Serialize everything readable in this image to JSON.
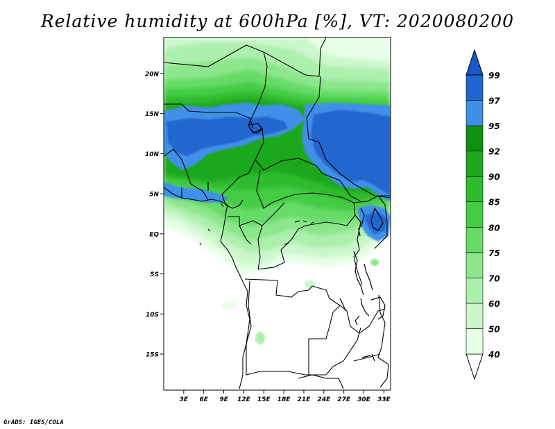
{
  "title": "Relative humidity at 600hPa [%], VT: 2020080200",
  "credit": "GrADS: IGES/COLA",
  "map": {
    "lat_range": [
      -19.5,
      24.5
    ],
    "lon_range": [
      0,
      34
    ],
    "lat_labels": [
      {
        "lat": 20,
        "label": "20N"
      },
      {
        "lat": 15,
        "label": "15N"
      },
      {
        "lat": 10,
        "label": "10N"
      },
      {
        "lat": 5,
        "label": "5N"
      },
      {
        "lat": 0,
        "label": "EQ"
      },
      {
        "lat": -5,
        "label": "5S"
      },
      {
        "lat": -10,
        "label": "10S"
      },
      {
        "lat": -15,
        "label": "15S"
      }
    ],
    "lon_labels": [
      {
        "lon": 3,
        "label": "3E"
      },
      {
        "lon": 6,
        "label": "6E"
      },
      {
        "lon": 9,
        "label": "9E"
      },
      {
        "lon": 12,
        "label": "12E"
      },
      {
        "lon": 15,
        "label": "15E"
      },
      {
        "lon": 18,
        "label": "18E"
      },
      {
        "lon": 21,
        "label": "21E"
      },
      {
        "lon": 24,
        "label": "24E"
      },
      {
        "lon": 27,
        "label": "27E"
      },
      {
        "lon": 30,
        "label": "30E"
      },
      {
        "lon": 33,
        "label": "33E"
      }
    ]
  },
  "colorbar": {
    "levels": [
      {
        "label": "40",
        "color": "#e6ffe6"
      },
      {
        "label": "50",
        "color": "#ccf7cc"
      },
      {
        "label": "60",
        "color": "#adf0ad"
      },
      {
        "label": "70",
        "color": "#8ce68c"
      },
      {
        "label": "75",
        "color": "#66db66"
      },
      {
        "label": "80",
        "color": "#44cc44"
      },
      {
        "label": "85",
        "color": "#2ebc2e"
      },
      {
        "label": "90",
        "color": "#1ea81e"
      },
      {
        "label": "92",
        "color": "#118f11"
      },
      {
        "label": "95",
        "color": "#3f8fe8"
      },
      {
        "label": "97",
        "color": "#2066d0"
      },
      {
        "label": "99",
        "color": "#1a58c8"
      }
    ],
    "under_color": "#ffffff",
    "over_color": "#1a58c8"
  },
  "fields": {
    "low": "#ffffff",
    "very_light": "#e6ffe6",
    "light": "#ccf7cc",
    "medium_light": "#adf0ad",
    "medium": "#8ce68c",
    "mid": "#66db66",
    "mid_dark": "#44cc44",
    "dark": "#2ebc2e",
    "darker": "#1ea81e",
    "darkest_green": "#118f11",
    "blue_light": "#3f8fe8",
    "blue": "#2066d0"
  }
}
